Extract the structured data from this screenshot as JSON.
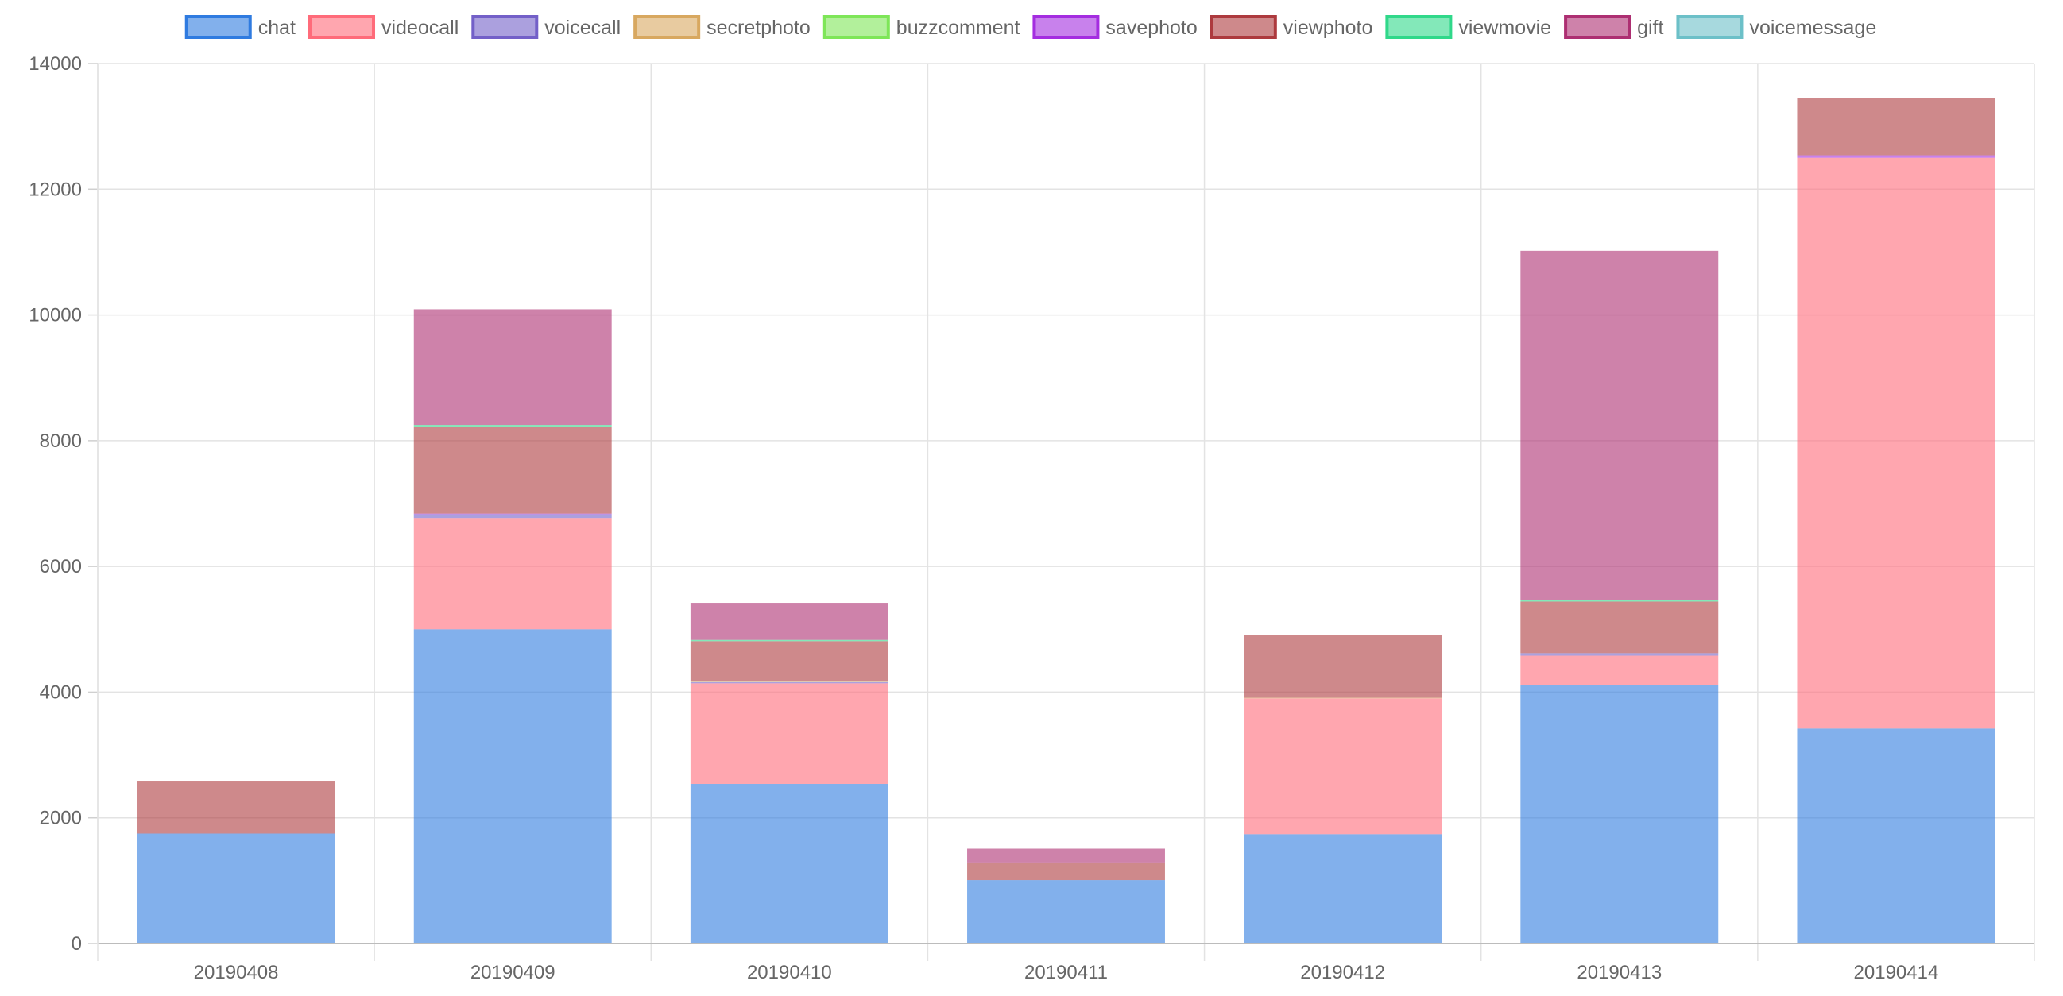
{
  "chart_data": {
    "type": "bar",
    "stacked": true,
    "legend_position": "top",
    "grid": true,
    "ylim": [
      0,
      14000
    ],
    "y_ticks": [
      0,
      2000,
      4000,
      6000,
      8000,
      10000,
      12000,
      14000
    ],
    "categories": [
      "20190408",
      "20190409",
      "20190410",
      "20190411",
      "20190412",
      "20190413",
      "20190414"
    ],
    "series": [
      {
        "name": "chat",
        "color": "#2f7be0",
        "values": [
          1750,
          5000,
          2540,
          1010,
          1740,
          4110,
          3420
        ]
      },
      {
        "name": "videocall",
        "color": "#ff6b7a",
        "values": [
          0,
          1770,
          1600,
          0,
          2160,
          470,
          9080
        ]
      },
      {
        "name": "voicecall",
        "color": "#7360c8",
        "values": [
          0,
          60,
          20,
          0,
          0,
          40,
          0
        ]
      },
      {
        "name": "secretphoto",
        "color": "#d8a860",
        "values": [
          0,
          0,
          10,
          0,
          10,
          0,
          0
        ]
      },
      {
        "name": "buzzcomment",
        "color": "#7ee658",
        "values": [
          0,
          0,
          0,
          0,
          0,
          0,
          0
        ]
      },
      {
        "name": "savephoto",
        "color": "#a42de0",
        "values": [
          0,
          10,
          0,
          0,
          0,
          0,
          40
        ]
      },
      {
        "name": "viewphoto",
        "color": "#ad3a3e",
        "values": [
          840,
          1380,
          640,
          280,
          1000,
          820,
          910
        ]
      },
      {
        "name": "viewmovie",
        "color": "#30d88a",
        "values": [
          0,
          30,
          20,
          0,
          0,
          20,
          0
        ]
      },
      {
        "name": "gift",
        "color": "#ad2f72",
        "values": [
          0,
          1840,
          590,
          220,
          0,
          5560,
          0
        ]
      },
      {
        "name": "voicemessage",
        "color": "#6cc0c8",
        "values": [
          0,
          0,
          0,
          0,
          0,
          0,
          0
        ]
      }
    ]
  }
}
